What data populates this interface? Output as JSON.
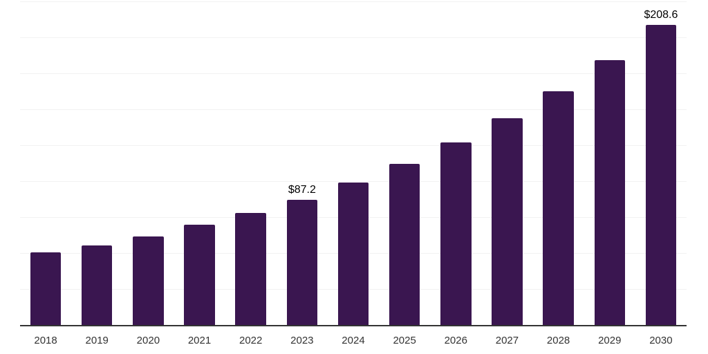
{
  "chart_data": {
    "type": "bar",
    "title": "",
    "xlabel": "",
    "ylabel": "",
    "categories": [
      "2018",
      "2019",
      "2020",
      "2021",
      "2022",
      "2023",
      "2024",
      "2025",
      "2026",
      "2027",
      "2028",
      "2029",
      "2030"
    ],
    "values": [
      50.3,
      55.1,
      61.4,
      69.5,
      77.9,
      87.2,
      98.8,
      111.9,
      126.7,
      143.5,
      162.6,
      184.2,
      208.6
    ],
    "data_labels": {
      "2023": "$87.2",
      "2030": "$208.6"
    },
    "unit_prefix": "$",
    "ylim": [
      0,
      225
    ],
    "gridline_step": 25,
    "grid": "on",
    "legend": "none",
    "colors": {
      "bar": "#3a1650",
      "axis_line": "#333333",
      "gridline": "#f2f2f2",
      "tick_label": "#333333",
      "value_label": "#000000",
      "background": "#ffffff"
    }
  }
}
